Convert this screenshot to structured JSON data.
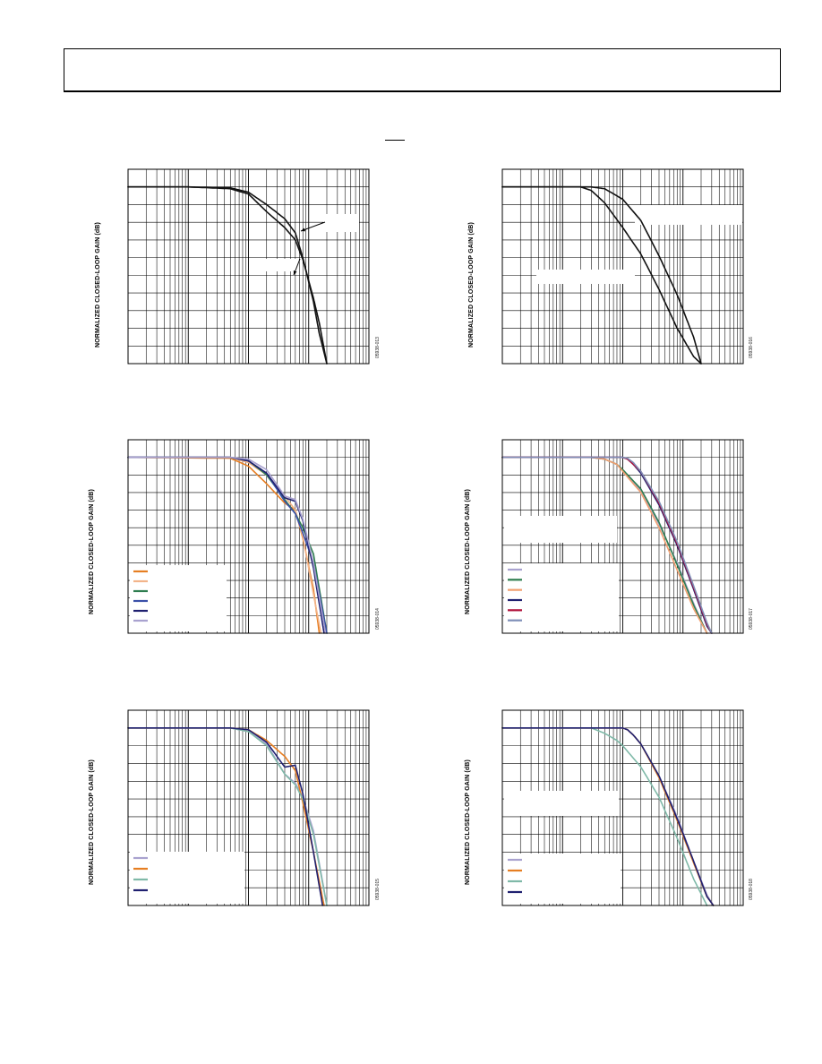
{
  "page": {
    "header_text": "",
    "ylabel": "NORMALIZED CLOSED-LOOP GAIN (dB)"
  },
  "chart_data": [
    {
      "id": "c1",
      "type": "line",
      "figure_code": "05938-013",
      "x_scale": "log",
      "xlim": [
        0.1,
        1000
      ],
      "ylim": [
        -10,
        1
      ],
      "ylabel": "NORMALIZED CLOSED-LOOP GAIN (dB)",
      "legend": [],
      "series": [
        {
          "color": "#111111",
          "x": [
            0.1,
            1,
            5,
            10,
            20,
            40,
            60,
            80,
            120,
            150,
            200
          ],
          "y": [
            0,
            0,
            -0.05,
            -0.3,
            -1.0,
            -1.8,
            -2.6,
            -4.0,
            -6.5,
            -8.3,
            -10
          ]
        },
        {
          "color": "#111111",
          "x": [
            0.1,
            1,
            5,
            10,
            20,
            40,
            60,
            80,
            120,
            150,
            200
          ],
          "y": [
            0,
            0,
            -0.1,
            -0.4,
            -1.4,
            -2.3,
            -3.0,
            -4.1,
            -6.3,
            -7.7,
            -10
          ]
        }
      ]
    },
    {
      "id": "c2",
      "type": "line",
      "figure_code": "05938-016",
      "x_scale": "log",
      "xlim": [
        0.1,
        1000
      ],
      "ylim": [
        -10,
        1
      ],
      "ylabel": "NORMALIZED CLOSED-LOOP GAIN (dB)",
      "legend": [],
      "series": [
        {
          "color": "#111111",
          "x": [
            0.1,
            1,
            2,
            3,
            5,
            10,
            20,
            40,
            80,
            150,
            200
          ],
          "y": [
            0,
            0,
            0,
            -0.2,
            -0.9,
            -2.3,
            -3.8,
            -5.8,
            -8.0,
            -9.6,
            -10
          ]
        },
        {
          "color": "#111111",
          "x": [
            0.1,
            2,
            3,
            5,
            10,
            20,
            40,
            80,
            150,
            200
          ],
          "y": [
            0,
            0,
            0,
            -0.1,
            -0.7,
            -1.9,
            -3.9,
            -6.1,
            -8.5,
            -10
          ]
        }
      ]
    },
    {
      "id": "c3",
      "type": "line",
      "figure_code": "05938-014",
      "x_scale": "log",
      "xlim": [
        0.1,
        1000
      ],
      "ylim": [
        -10,
        1
      ],
      "ylabel": "NORMALIZED CLOSED-LOOP GAIN (dB)",
      "legend": [
        "",
        "",
        "",
        "",
        "",
        ""
      ],
      "series": [
        {
          "color": "#E67E22",
          "x": [
            0.1,
            5,
            10,
            20,
            40,
            60,
            80,
            120,
            150
          ],
          "y": [
            0,
            -0.05,
            -0.5,
            -1.5,
            -2.6,
            -3.0,
            -4.6,
            -7.5,
            -10
          ]
        },
        {
          "color": "#F2B48A",
          "x": [
            0.1,
            5,
            10,
            20,
            40,
            60,
            80,
            120,
            160
          ],
          "y": [
            0,
            0,
            -0.3,
            -1.0,
            -2.2,
            -3.0,
            -4.5,
            -7.8,
            -10
          ]
        },
        {
          "color": "#2E7D4F",
          "x": [
            0.1,
            5,
            10,
            20,
            40,
            60,
            80,
            120,
            200
          ],
          "y": [
            0,
            0,
            -0.2,
            -1.0,
            -2.4,
            -3.2,
            -4.0,
            -5.5,
            -10
          ]
        },
        {
          "color": "#3A4FA8",
          "x": [
            0.1,
            5,
            10,
            20,
            40,
            60,
            80,
            120,
            200
          ],
          "y": [
            0,
            0,
            -0.2,
            -0.9,
            -2.5,
            -3.2,
            -4.3,
            -6.0,
            -10
          ]
        },
        {
          "color": "#1F2070",
          "x": [
            0.1,
            5,
            10,
            20,
            40,
            60,
            80,
            120,
            180
          ],
          "y": [
            0,
            0,
            -0.2,
            -0.9,
            -2.3,
            -2.5,
            -3.6,
            -6.3,
            -10
          ]
        },
        {
          "color": "#A9A2CF",
          "x": [
            0.1,
            5,
            10,
            20,
            40,
            60,
            80,
            120,
            190
          ],
          "y": [
            0,
            0,
            -0.1,
            -0.7,
            -2.2,
            -2.4,
            -3.5,
            -6.0,
            -10
          ]
        }
      ]
    },
    {
      "id": "c4",
      "type": "line",
      "figure_code": "05938-017",
      "x_scale": "log",
      "xlim": [
        0.1,
        1000
      ],
      "ylim": [
        -10,
        1
      ],
      "ylabel": "NORMALIZED CLOSED-LOOP GAIN (dB)",
      "legend": [
        "",
        "",
        "",
        "",
        "",
        ""
      ],
      "series": [
        {
          "color": "#A9A2CF",
          "x": [
            0.1,
            3,
            5,
            8,
            10,
            20,
            40,
            80,
            150,
            250
          ],
          "y": [
            0,
            0,
            -0.1,
            -0.4,
            -0.7,
            -1.9,
            -3.8,
            -6.0,
            -8.3,
            -10
          ]
        },
        {
          "color": "#2E7D4F",
          "x": [
            0.1,
            3,
            5,
            8,
            10,
            20,
            40,
            80,
            150,
            250
          ],
          "y": [
            0,
            0,
            -0.1,
            -0.4,
            -0.7,
            -1.8,
            -3.7,
            -6.1,
            -8.4,
            -10
          ]
        },
        {
          "color": "#F2A070",
          "x": [
            0.1,
            3,
            5,
            8,
            10,
            20,
            40,
            80,
            150,
            250
          ],
          "y": [
            0,
            0,
            -0.1,
            -0.4,
            -0.8,
            -2.0,
            -4.0,
            -6.4,
            -8.6,
            -10
          ]
        },
        {
          "color": "#1F2070",
          "x": [
            0.1,
            10,
            12,
            15,
            20,
            40,
            80,
            150,
            250,
            300
          ],
          "y": [
            0,
            0,
            -0.1,
            -0.4,
            -0.9,
            -2.7,
            -5.0,
            -7.5,
            -9.6,
            -10
          ]
        },
        {
          "color": "#B0123A",
          "x": [
            0.1,
            10,
            12,
            15,
            20,
            40,
            80,
            150,
            250,
            300
          ],
          "y": [
            0,
            0,
            -0.1,
            -0.4,
            -0.8,
            -2.6,
            -4.9,
            -7.4,
            -9.5,
            -10
          ]
        },
        {
          "color": "#7F8FB8",
          "x": [
            0.1,
            10,
            12,
            15,
            20,
            40,
            80,
            150,
            250,
            300
          ],
          "y": [
            0,
            0,
            -0.05,
            -0.3,
            -0.8,
            -2.5,
            -4.8,
            -7.3,
            -9.4,
            -10
          ]
        }
      ]
    },
    {
      "id": "c5",
      "type": "line",
      "figure_code": "05938-015",
      "x_scale": "log",
      "xlim": [
        0.1,
        1000
      ],
      "ylim": [
        -10,
        1
      ],
      "ylabel": "NORMALIZED CLOSED-LOOP GAIN (dB)",
      "legend": [
        "",
        "",
        "",
        ""
      ],
      "series": [
        {
          "color": "#A9A2CF",
          "x": [
            0.1,
            5,
            10,
            20,
            40,
            60,
            80,
            120,
            200
          ],
          "y": [
            0,
            0,
            -0.2,
            -0.9,
            -2.6,
            -3.1,
            -3.9,
            -5.8,
            -10
          ]
        },
        {
          "color": "#E67E22",
          "x": [
            0.1,
            5,
            10,
            20,
            40,
            60,
            80,
            120,
            180
          ],
          "y": [
            0,
            0,
            -0.1,
            -0.7,
            -1.6,
            -2.4,
            -4.2,
            -7.0,
            -10
          ]
        },
        {
          "color": "#7FB9A8",
          "x": [
            0.1,
            5,
            10,
            20,
            40,
            60,
            80,
            120,
            200
          ],
          "y": [
            0,
            0,
            -0.2,
            -1.0,
            -2.6,
            -3.2,
            -4.0,
            -6.0,
            -10
          ]
        },
        {
          "color": "#1F2070",
          "x": [
            0.1,
            5,
            10,
            20,
            40,
            60,
            80,
            120,
            170
          ],
          "y": [
            0,
            0,
            -0.1,
            -0.8,
            -2.2,
            -2.1,
            -3.7,
            -7.0,
            -10
          ]
        }
      ]
    },
    {
      "id": "c6",
      "type": "line",
      "figure_code": "05938-018",
      "x_scale": "log",
      "xlim": [
        0.1,
        1000
      ],
      "ylim": [
        -10,
        1
      ],
      "ylabel": "NORMALIZED CLOSED-LOOP GAIN (dB)",
      "legend": [
        "",
        "",
        "",
        ""
      ],
      "series": [
        {
          "color": "#A9A2CF",
          "x": [
            0.1,
            10,
            12,
            15,
            20,
            40,
            80,
            150,
            250,
            320
          ],
          "y": [
            0,
            0,
            -0.1,
            -0.4,
            -0.9,
            -2.7,
            -5.0,
            -7.5,
            -9.4,
            -10
          ]
        },
        {
          "color": "#E67E22",
          "x": [
            0.1,
            10,
            12,
            15,
            20,
            40,
            80,
            150,
            250,
            320
          ],
          "y": [
            0,
            0,
            -0.1,
            -0.4,
            -0.9,
            -2.8,
            -5.2,
            -7.6,
            -9.5,
            -10
          ]
        },
        {
          "color": "#7FB9A8",
          "x": [
            0.1,
            3,
            5,
            8,
            10,
            20,
            40,
            80,
            150,
            250
          ],
          "y": [
            0,
            0,
            -0.3,
            -0.7,
            -1.0,
            -2.2,
            -3.9,
            -6.2,
            -8.5,
            -10
          ]
        },
        {
          "color": "#1F2070",
          "x": [
            0.1,
            10,
            12,
            15,
            20,
            40,
            80,
            150,
            250,
            320
          ],
          "y": [
            0,
            0,
            -0.1,
            -0.4,
            -0.9,
            -2.7,
            -5.1,
            -7.5,
            -9.5,
            -10
          ]
        }
      ]
    }
  ]
}
